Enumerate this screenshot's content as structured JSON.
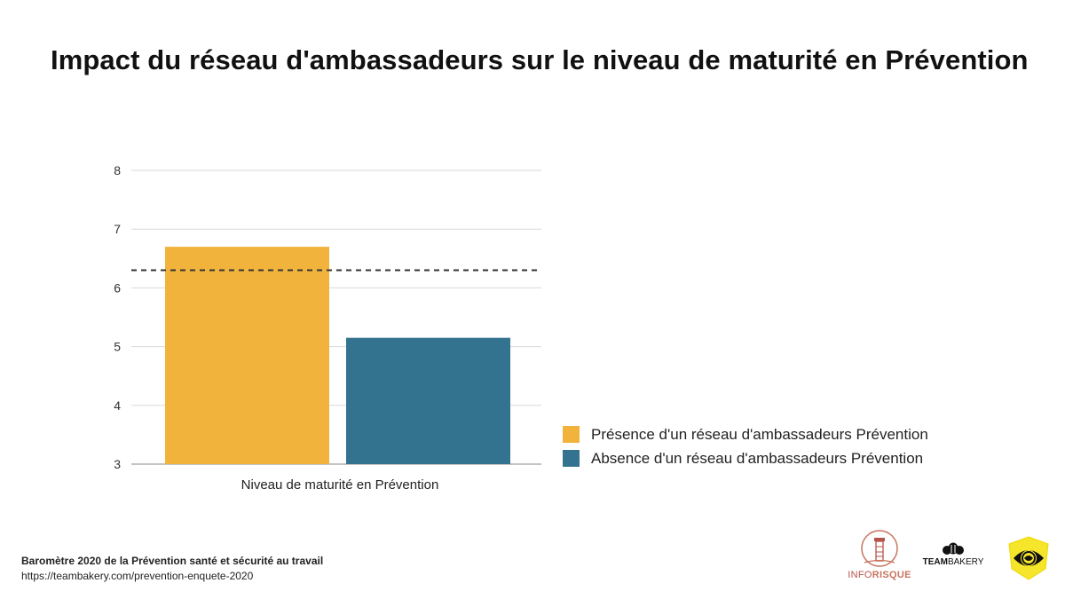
{
  "title": "Impact du réseau d'ambassadeurs sur le niveau de maturité en Prévention",
  "chart_data": {
    "type": "bar",
    "title": "Impact du réseau d'ambassadeurs sur le niveau de maturité en Prévention",
    "categories": [
      "Niveau de maturité en Prévention"
    ],
    "series": [
      {
        "name": "Présence d'un réseau d'ambassadeurs Prévention",
        "values": [
          6.7
        ],
        "color": "#f2b33d"
      },
      {
        "name": "Absence d'un réseau d'ambassadeurs Prévention",
        "values": [
          5.15
        ],
        "color": "#33738f"
      }
    ],
    "reference_line": {
      "value": 6.3,
      "style": "dashed"
    },
    "ylim": [
      3,
      8
    ],
    "yticks": [
      "3",
      "4",
      "5",
      "6",
      "7",
      "8"
    ],
    "xlabel": "Niveau de maturité en Prévention",
    "ylabel": "",
    "grid": true,
    "legend_position": "right"
  },
  "footer": {
    "line1": "Baromètre 2020 de la Prévention santé et sécurité au travail",
    "line2": "https://teambakery.com/prevention-enquete-2020"
  },
  "logos": {
    "inforisque_part1": "INFO",
    "inforisque_part2": "RISQUE",
    "teambakery_part1": "TEAM",
    "teambakery_part2": "BAKERY"
  }
}
